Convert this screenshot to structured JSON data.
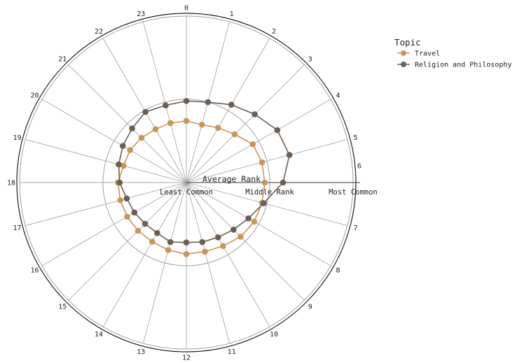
{
  "chart_data": {
    "type": "line",
    "polar": true,
    "categories": [
      "0",
      "1",
      "2",
      "3",
      "4",
      "5",
      "6",
      "7",
      "8",
      "9",
      "10",
      "11",
      "12",
      "13",
      "14",
      "15",
      "16",
      "17",
      "18",
      "19",
      "20",
      "21",
      "22",
      "23"
    ],
    "radial_axis": {
      "title": "Average Rank",
      "range": [
        0,
        1
      ],
      "ticks": [
        {
          "value": 0,
          "label": "Least Common"
        },
        {
          "value": 0.5,
          "label": "Middle Rank"
        },
        {
          "value": 1,
          "label": "Most Common"
        }
      ]
    },
    "grid": true,
    "legend": {
      "title": "Topic",
      "placement": "top-right"
    },
    "series": [
      {
        "name": "Travel",
        "color": "#c8965a",
        "values": [
          0.37,
          0.36,
          0.38,
          0.41,
          0.46,
          0.47,
          0.47,
          0.47,
          0.47,
          0.46,
          0.44,
          0.43,
          0.43,
          0.42,
          0.41,
          0.41,
          0.41,
          0.41,
          0.41,
          0.39,
          0.39,
          0.38,
          0.37,
          0.37
        ]
      },
      {
        "name": "Religion and Philosophy",
        "color": "#6b5e53",
        "values": [
          0.49,
          0.5,
          0.54,
          0.58,
          0.63,
          0.64,
          0.58,
          0.48,
          0.43,
          0.4,
          0.38,
          0.37,
          0.36,
          0.37,
          0.35,
          0.35,
          0.36,
          0.37,
          0.4,
          0.42,
          0.44,
          0.46,
          0.49,
          0.48
        ]
      }
    ]
  }
}
